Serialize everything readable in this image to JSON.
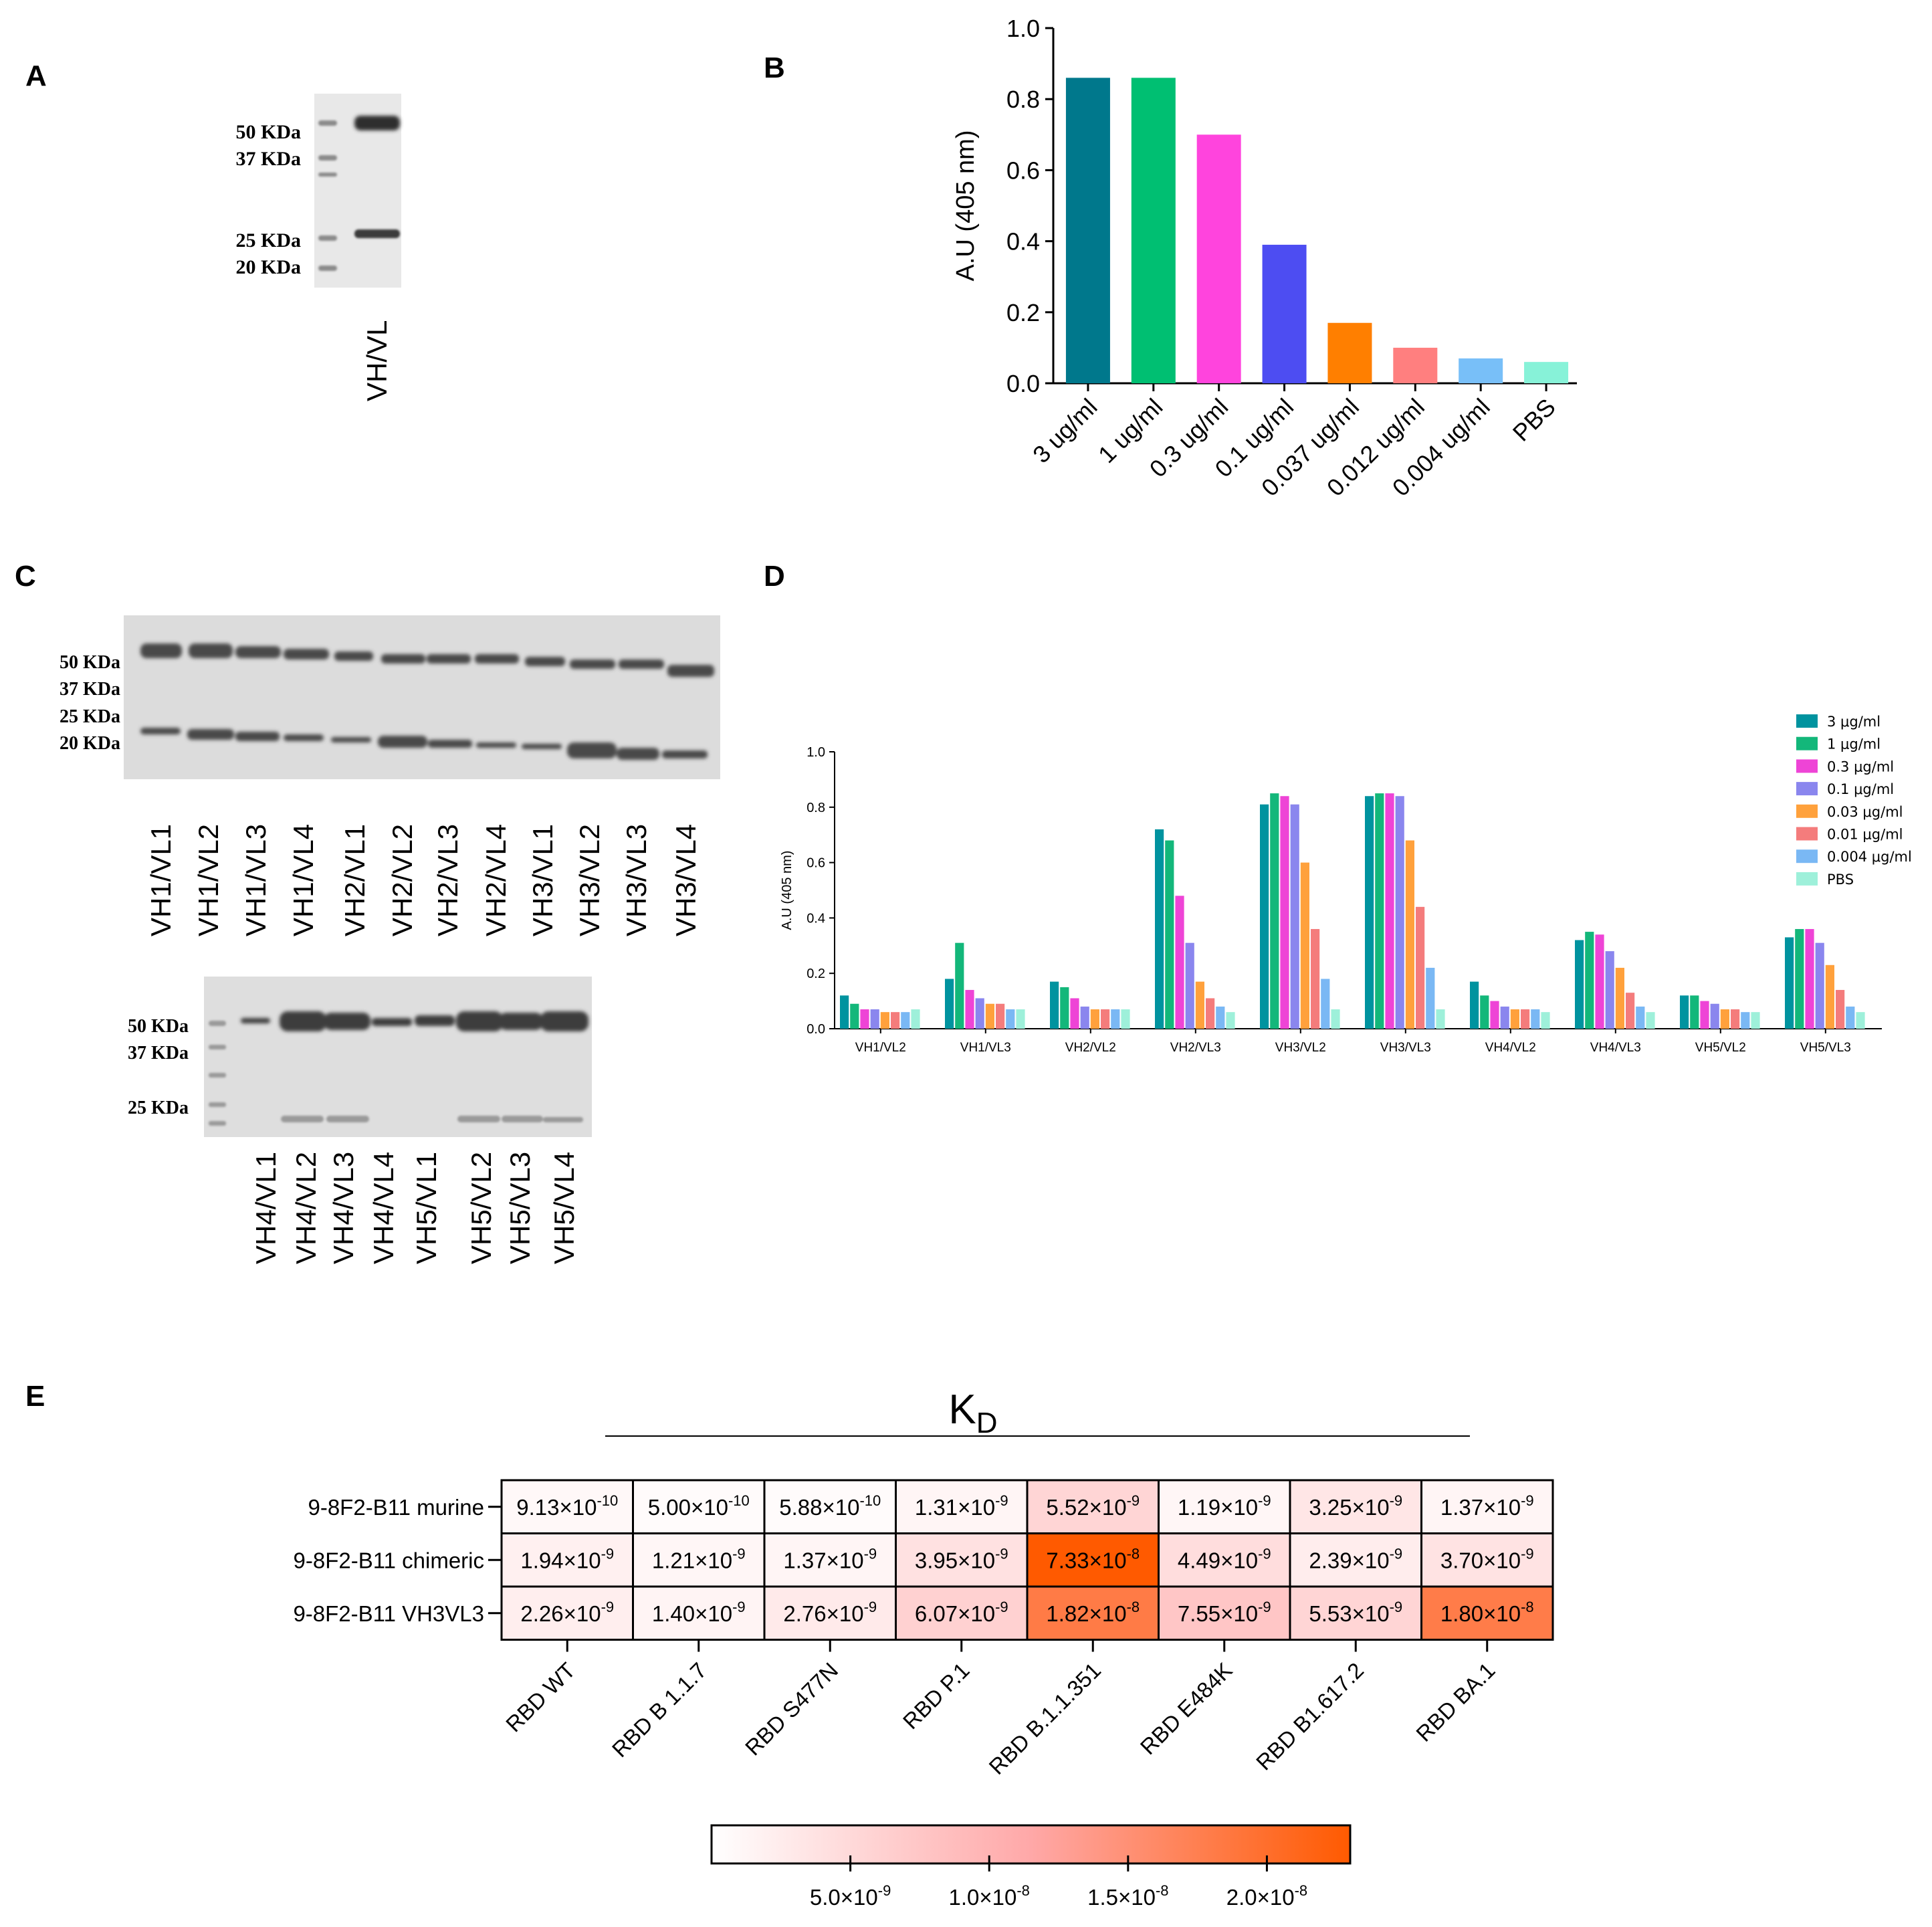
{
  "panel_labels": {
    "a": "A",
    "b": "B",
    "c": "C",
    "d": "D",
    "e": "E"
  },
  "panel_a": {
    "markers": [
      "50 KDa",
      "37 KDa",
      "25 KDa",
      "20 KDa"
    ],
    "lane_label": "VH/VL"
  },
  "panel_c": {
    "top_markers": [
      "50 KDa",
      "37 KDa",
      "25 KDa",
      "20 KDa"
    ],
    "top_lanes": [
      "VH1/VL1",
      "VH1/VL2",
      "VH1/VL3",
      "VH1/VL4",
      "VH2/VL1",
      "VH2/VL2",
      "VH2/VL3",
      "VH2/VL4",
      "VH3/VL1",
      "VH3/VL2",
      "VH3/VL3",
      "VH3/VL4"
    ],
    "bottom_markers": [
      "50 KDa",
      "37 KDa",
      "25 KDa"
    ],
    "bottom_lanes": [
      "VH4/VL1",
      "VH4/VL2",
      "VH4/VL3",
      "VH4/VL4",
      "VH5/VL1",
      "VH5/VL2",
      "VH5/VL3",
      "VH5/VL4"
    ]
  },
  "chart_data": [
    {
      "id": "B",
      "type": "bar",
      "categories": [
        "3 ug/ml",
        "1 ug/ml",
        "0.3 ug/ml",
        "0.1 ug/ml",
        "0.037 ug/ml",
        "0.012 ug/ml",
        "0.004 ug/ml",
        "PBS"
      ],
      "values": [
        0.86,
        0.86,
        0.7,
        0.39,
        0.17,
        0.1,
        0.07,
        0.06
      ],
      "colors": [
        "#00788c",
        "#00bf72",
        "#ff44dd",
        "#4d4df2",
        "#ff7f00",
        "#ff7f7f",
        "#78bff8",
        "#87f2d8"
      ],
      "ylabel": "A.U (405 nm)",
      "xlabel": "",
      "ylim": [
        0,
        1.0
      ],
      "yticks": [
        "0.0",
        "0.2",
        "0.4",
        "0.6",
        "0.8",
        "1.0"
      ]
    },
    {
      "id": "D",
      "type": "bar",
      "categories": [
        "VH1/VL2",
        "VH1/VL3",
        "VH2/VL2",
        "VH2/VL3",
        "VH3/VL2",
        "VH3/VL3",
        "VH4/VL2",
        "VH4/VL3",
        "VH5/VL2",
        "VH5/VL3"
      ],
      "series": [
        {
          "name": "3 μg/ml",
          "color": "#00939f",
          "values": [
            0.12,
            0.18,
            0.17,
            0.72,
            0.81,
            0.84,
            0.17,
            0.32,
            0.12,
            0.33
          ]
        },
        {
          "name": "1 μg/ml",
          "color": "#13b77a",
          "values": [
            0.09,
            0.31,
            0.15,
            0.68,
            0.85,
            0.85,
            0.12,
            0.35,
            0.12,
            0.36
          ]
        },
        {
          "name": "0.3 μg/ml",
          "color": "#ee44d6",
          "values": [
            0.07,
            0.14,
            0.11,
            0.48,
            0.84,
            0.85,
            0.1,
            0.34,
            0.1,
            0.36
          ]
        },
        {
          "name": "0.1 μg/ml",
          "color": "#8a86ee",
          "values": [
            0.07,
            0.11,
            0.08,
            0.31,
            0.81,
            0.84,
            0.08,
            0.28,
            0.09,
            0.31
          ]
        },
        {
          "name": "0.03 μg/ml",
          "color": "#ffa13c",
          "values": [
            0.06,
            0.09,
            0.07,
            0.17,
            0.6,
            0.68,
            0.07,
            0.22,
            0.07,
            0.23
          ]
        },
        {
          "name": "0.01 μg/ml",
          "color": "#f47c7c",
          "values": [
            0.06,
            0.09,
            0.07,
            0.11,
            0.36,
            0.44,
            0.07,
            0.13,
            0.07,
            0.14
          ]
        },
        {
          "name": "0.004 μg/ml",
          "color": "#7ab8f4",
          "values": [
            0.06,
            0.07,
            0.07,
            0.08,
            0.18,
            0.22,
            0.07,
            0.08,
            0.06,
            0.08
          ]
        },
        {
          "name": "PBS",
          "color": "#9ef0da",
          "values": [
            0.07,
            0.07,
            0.07,
            0.06,
            0.07,
            0.07,
            0.06,
            0.06,
            0.06,
            0.06
          ]
        }
      ],
      "ylabel": "A.U (405 nm)",
      "xlabel": "",
      "ylim": [
        0,
        1.0
      ],
      "yticks": [
        "0.0",
        "0.2",
        "0.4",
        "0.6",
        "0.8",
        "1.0"
      ],
      "legend": "top-right"
    },
    {
      "id": "E",
      "type": "heatmap",
      "title": "KD",
      "title_main": "K",
      "title_sub": "D",
      "rows": [
        "9-8F2-B11 murine",
        "9-8F2-B11 chimeric",
        "9-8F2-B11 VH3VL3"
      ],
      "columns": [
        "RBD WT",
        "RBD B 1.1.7",
        "RBD S477N",
        "RBD P.1",
        "RBD B.1.1.351",
        "RBD E484K",
        "RBD B1.617.2",
        "RBD BA.1"
      ],
      "values": [
        [
          9.13e-10,
          5e-10,
          5.88e-10,
          1.31e-09,
          5.52e-09,
          1.19e-09,
          3.25e-09,
          1.37e-09
        ],
        [
          1.94e-09,
          1.21e-09,
          1.37e-09,
          3.95e-09,
          7.33e-08,
          4.49e-09,
          2.39e-09,
          3.7e-09
        ],
        [
          2.26e-09,
          1.4e-09,
          2.76e-09,
          6.07e-09,
          1.82e-08,
          7.55e-09,
          5.53e-09,
          1.8e-08
        ]
      ],
      "cell_labels": [
        [
          {
            "m": "9.13",
            "e": "-10"
          },
          {
            "m": "5.00",
            "e": "-10"
          },
          {
            "m": "5.88",
            "e": "-10"
          },
          {
            "m": "1.31",
            "e": "-9"
          },
          {
            "m": "5.52",
            "e": "-9"
          },
          {
            "m": "1.19",
            "e": "-9"
          },
          {
            "m": "3.25",
            "e": "-9"
          },
          {
            "m": "1.37",
            "e": "-9"
          }
        ],
        [
          {
            "m": "1.94",
            "e": "-9"
          },
          {
            "m": "1.21",
            "e": "-9"
          },
          {
            "m": "1.37",
            "e": "-9"
          },
          {
            "m": "3.95",
            "e": "-9"
          },
          {
            "m": "7.33",
            "e": "-8"
          },
          {
            "m": "4.49",
            "e": "-9"
          },
          {
            "m": "2.39",
            "e": "-9"
          },
          {
            "m": "3.70",
            "e": "-9"
          }
        ],
        [
          {
            "m": "2.26",
            "e": "-9"
          },
          {
            "m": "1.40",
            "e": "-9"
          },
          {
            "m": "2.76",
            "e": "-9"
          },
          {
            "m": "6.07",
            "e": "-9"
          },
          {
            "m": "1.82",
            "e": "-8"
          },
          {
            "m": "7.55",
            "e": "-9"
          },
          {
            "m": "5.53",
            "e": "-9"
          },
          {
            "m": "1.80",
            "e": "-8"
          }
        ]
      ],
      "colorbar": {
        "range": [
          0,
          2.3e-08
        ],
        "low_color": "#ffffff",
        "mid_color": "#ffa8a8",
        "high_color": "#ff5a00",
        "ticks": [
          {
            "m": "5.0",
            "e": "-9",
            "v": 5e-09
          },
          {
            "m": "1.0",
            "e": "-8",
            "v": 1e-08
          },
          {
            "m": "1.5",
            "e": "-8",
            "v": 1.5e-08
          },
          {
            "m": "2.0",
            "e": "-8",
            "v": 2e-08
          }
        ]
      }
    }
  ]
}
